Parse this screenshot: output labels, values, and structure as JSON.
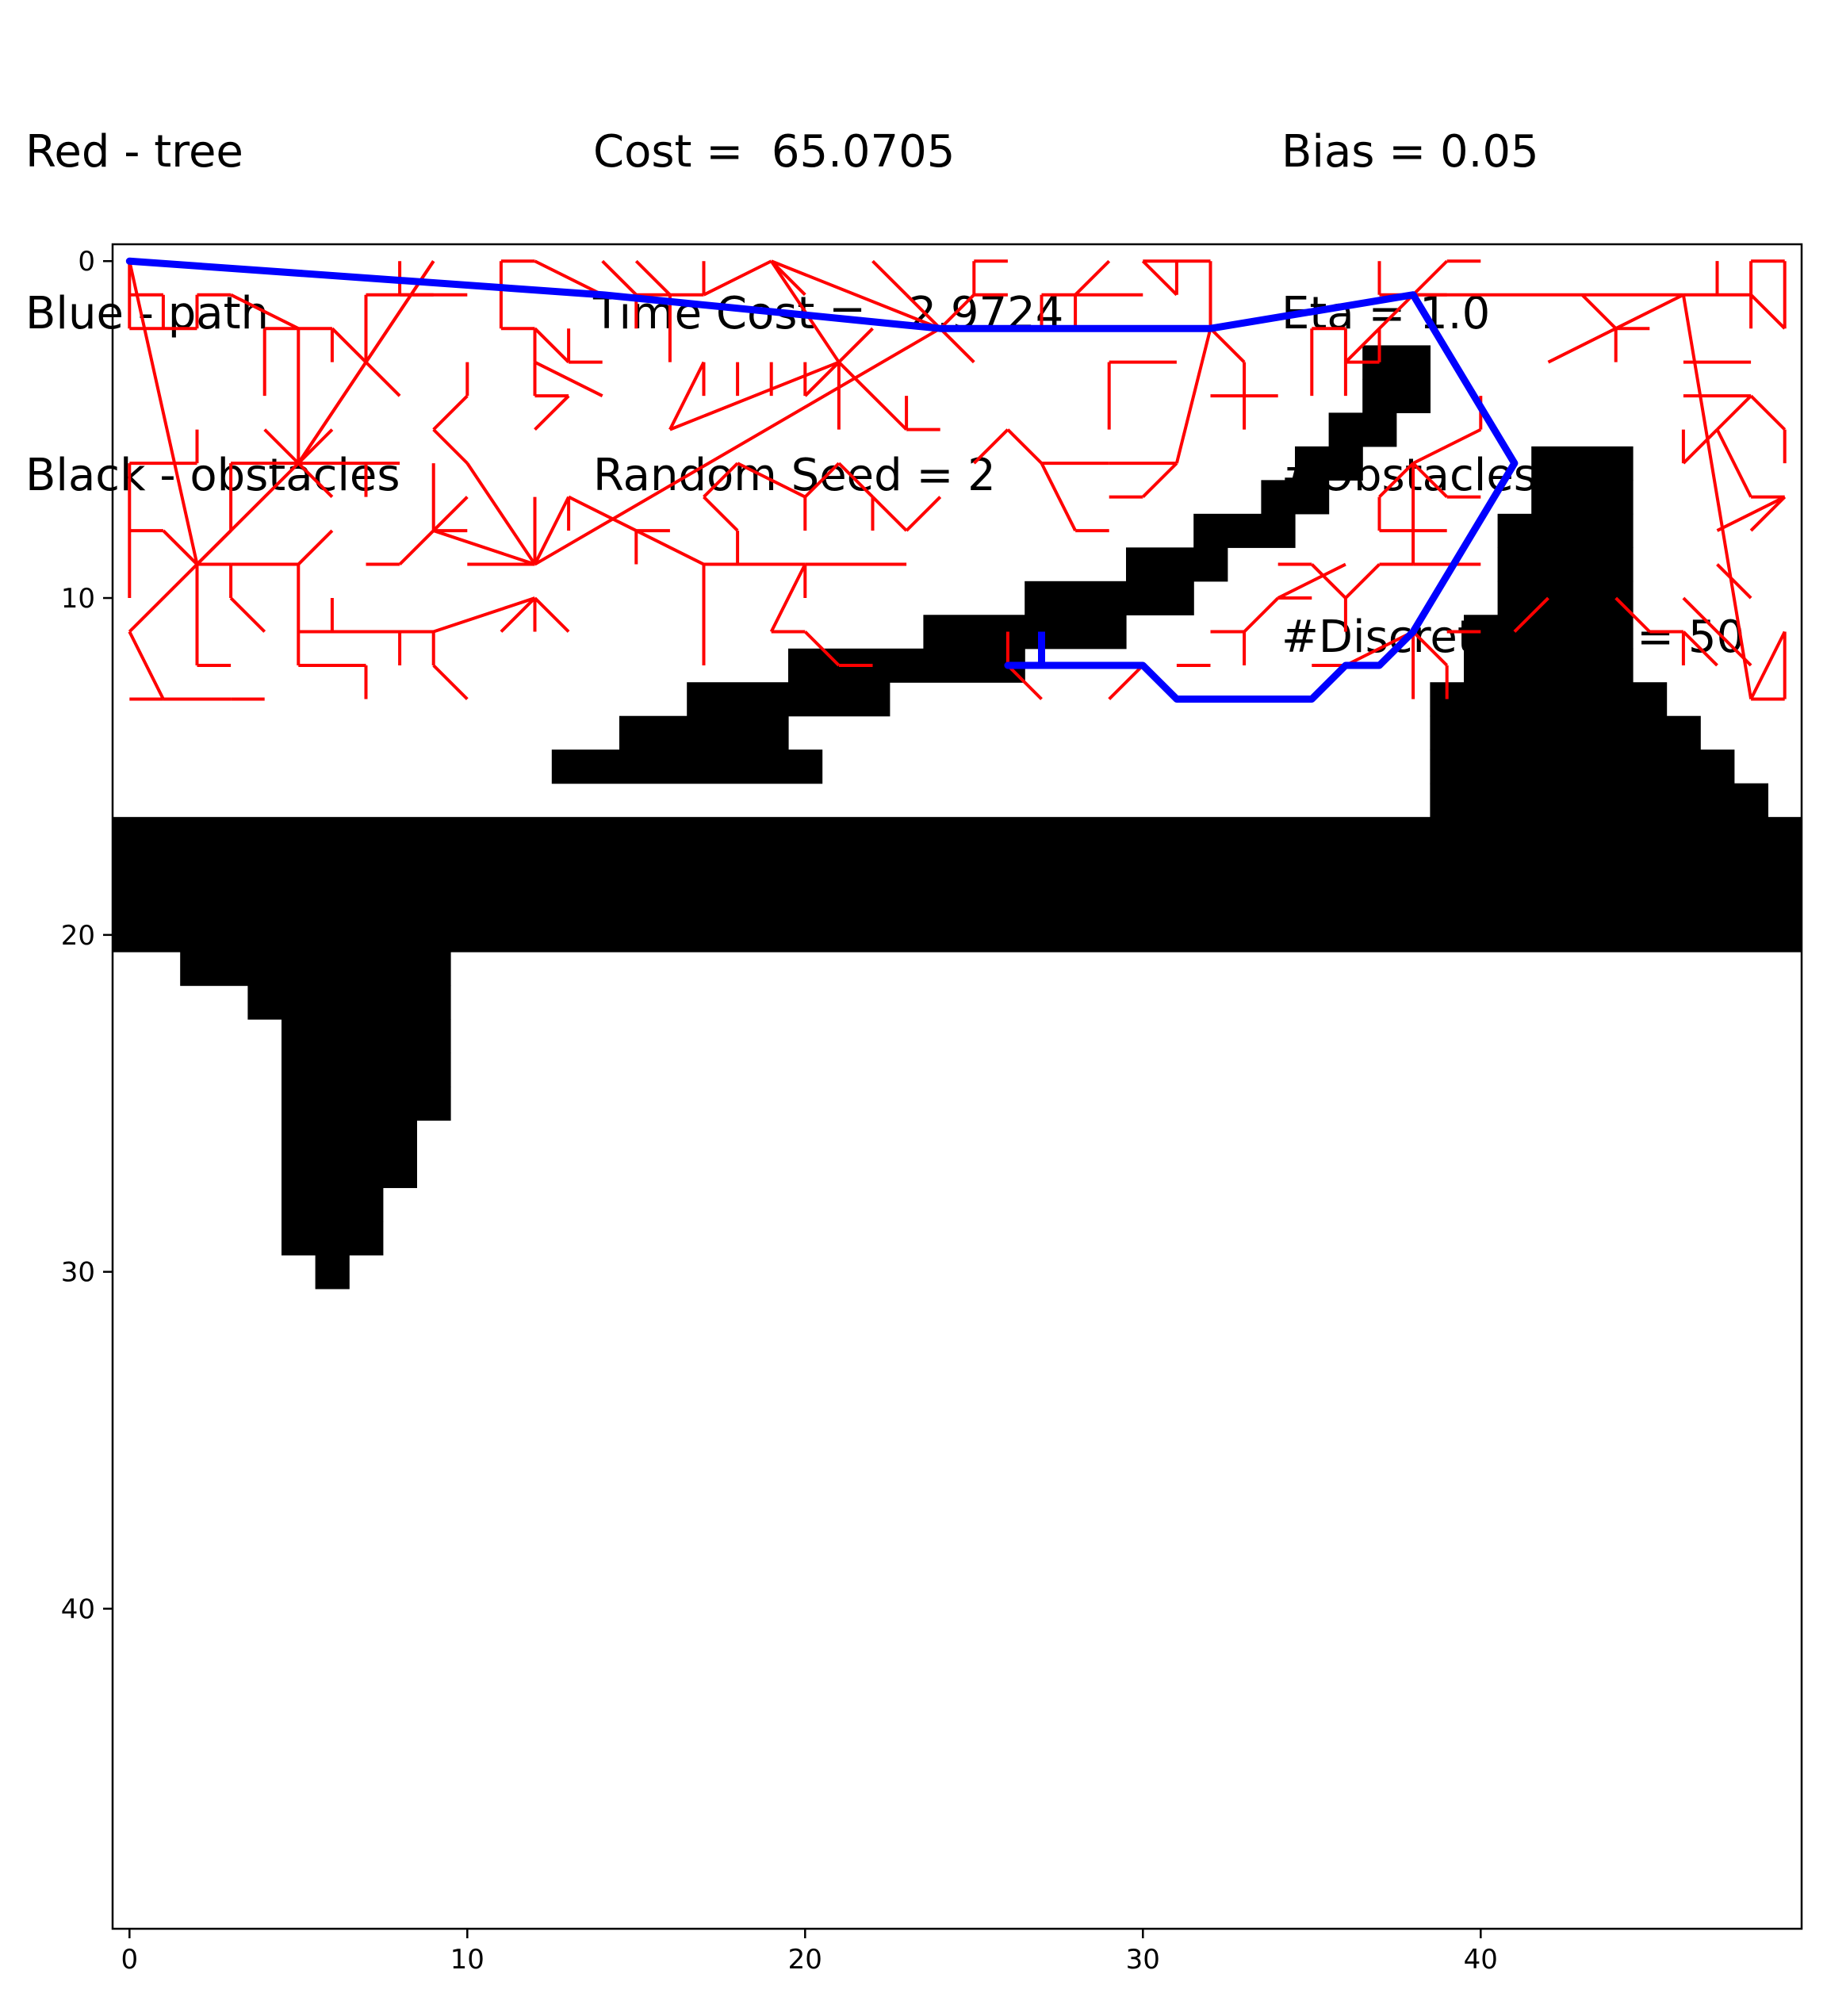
{
  "header": {
    "legend_lines": [
      "Red - tree",
      "Blue - path",
      "Black - obstacles"
    ],
    "stats_lines": [
      "Cost =  65.0705",
      "Time Cost =   2.9724",
      "Random Seed = 2"
    ],
    "params_lines": [
      "Bias = 0.05",
      "Eta = 1.0",
      "#Obstacles = 2",
      "#Discretization = 50"
    ]
  },
  "colors": {
    "tree": "#ff0000",
    "path": "#0000ff",
    "obstacles": "#000000"
  },
  "chart_data": {
    "type": "grid-path-plot",
    "xlim": [
      -0.5,
      49.5
    ],
    "ylim": [
      49.5,
      -0.5
    ],
    "grid_size": 50,
    "xticks": [
      0,
      10,
      20,
      30,
      40
    ],
    "yticks": [
      0,
      10,
      20,
      30,
      40
    ],
    "obstacle_runs": [
      [
        3,
        37,
        38
      ],
      [
        4,
        37,
        38
      ],
      [
        5,
        36,
        37
      ],
      [
        6,
        35,
        36
      ],
      [
        7,
        34,
        35
      ],
      [
        8,
        32,
        34
      ],
      [
        9,
        30,
        32
      ],
      [
        10,
        27,
        31
      ],
      [
        11,
        24,
        29
      ],
      [
        12,
        20,
        26
      ],
      [
        13,
        17,
        22
      ],
      [
        14,
        15,
        19
      ],
      [
        15,
        13,
        20
      ],
      [
        6,
        42,
        44
      ],
      [
        7,
        42,
        44
      ],
      [
        8,
        41,
        44
      ],
      [
        9,
        41,
        44
      ],
      [
        10,
        41,
        44
      ],
      [
        11,
        40,
        44
      ],
      [
        12,
        40,
        44
      ],
      [
        13,
        39,
        45
      ],
      [
        14,
        39,
        46
      ],
      [
        15,
        39,
        47
      ],
      [
        16,
        39,
        48
      ],
      [
        17,
        0,
        49
      ],
      [
        18,
        0,
        49
      ],
      [
        19,
        0,
        49
      ],
      [
        20,
        0,
        49
      ],
      [
        21,
        2,
        9
      ],
      [
        22,
        4,
        9
      ],
      [
        23,
        5,
        9
      ],
      [
        24,
        5,
        9
      ],
      [
        25,
        5,
        9
      ],
      [
        26,
        5,
        8
      ],
      [
        27,
        5,
        8
      ],
      [
        28,
        5,
        7
      ],
      [
        29,
        5,
        7
      ],
      [
        30,
        6,
        6
      ]
    ],
    "tree_edges": [
      [
        0,
        0,
        2,
        9
      ],
      [
        2,
        9,
        5,
        6
      ],
      [
        5,
        6,
        9,
        0
      ],
      [
        2,
        9,
        0,
        11
      ],
      [
        0,
        11,
        1,
        13
      ],
      [
        1,
        13,
        0,
        13
      ],
      [
        1,
        13,
        2,
        13
      ],
      [
        2,
        13,
        3,
        13
      ],
      [
        3,
        13,
        4,
        13
      ],
      [
        2,
        9,
        2,
        12
      ],
      [
        2,
        12,
        3,
        12
      ],
      [
        2,
        9,
        3,
        9
      ],
      [
        3,
        9,
        3,
        10
      ],
      [
        3,
        10,
        4,
        11
      ],
      [
        3,
        9,
        5,
        9
      ],
      [
        5,
        9,
        6,
        8
      ],
      [
        2,
        9,
        1,
        8
      ],
      [
        1,
        8,
        0,
        8
      ],
      [
        2,
        9,
        3,
        8
      ],
      [
        0,
        0,
        0,
        2
      ],
      [
        0,
        1,
        1,
        1
      ],
      [
        1,
        1,
        1,
        2
      ],
      [
        0,
        2,
        2,
        2
      ],
      [
        2,
        2,
        2,
        1
      ],
      [
        2,
        1,
        3,
        1
      ],
      [
        3,
        1,
        5,
        2
      ],
      [
        5,
        2,
        5,
        6
      ],
      [
        4,
        2,
        6,
        2
      ],
      [
        4,
        2,
        4,
        4
      ],
      [
        5,
        6,
        4,
        5
      ],
      [
        5,
        6,
        6,
        7
      ],
      [
        5,
        6,
        3,
        6
      ],
      [
        3,
        6,
        3,
        8
      ],
      [
        5,
        6,
        6,
        5
      ],
      [
        0,
        6,
        2,
        6
      ],
      [
        2,
        6,
        2,
        5
      ],
      [
        0,
        6,
        0,
        10
      ],
      [
        5,
        6,
        7,
        6
      ],
      [
        7,
        6,
        7,
        7
      ],
      [
        7,
        6,
        8,
        6
      ],
      [
        5,
        6,
        7,
        3
      ],
      [
        7,
        3,
        8,
        4
      ],
      [
        7,
        3,
        9,
        0
      ],
      [
        7,
        3,
        6,
        2
      ],
      [
        6,
        2,
        6,
        3
      ],
      [
        7,
        3,
        7,
        1
      ],
      [
        7,
        1,
        8,
        1
      ],
      [
        8,
        1,
        9,
        1
      ],
      [
        8,
        1,
        8,
        0
      ],
      [
        8,
        1,
        10,
        1
      ],
      [
        5,
        9,
        5,
        12
      ],
      [
        5,
        12,
        7,
        12
      ],
      [
        7,
        12,
        7,
        13
      ],
      [
        5,
        11,
        9,
        11
      ],
      [
        6,
        11,
        6,
        10
      ],
      [
        8,
        11,
        8,
        12
      ],
      [
        9,
        11,
        12,
        10
      ],
      [
        12,
        10,
        12,
        11
      ],
      [
        12,
        10,
        13,
        11
      ],
      [
        12,
        10,
        11,
        11
      ],
      [
        9,
        11,
        9,
        12
      ],
      [
        9,
        12,
        10,
        13
      ],
      [
        12,
        9,
        9,
        8
      ],
      [
        9,
        8,
        10,
        8
      ],
      [
        9,
        8,
        8,
        9
      ],
      [
        8,
        9,
        7,
        9
      ],
      [
        9,
        8,
        9,
        6
      ],
      [
        9,
        8,
        10,
        7
      ],
      [
        12,
        9,
        10,
        9
      ],
      [
        12,
        9,
        10,
        6
      ],
      [
        10,
        6,
        9,
        5
      ],
      [
        9,
        5,
        10,
        4
      ],
      [
        10,
        4,
        10,
        3
      ],
      [
        12,
        9,
        13,
        7
      ],
      [
        13,
        7,
        13,
        8
      ],
      [
        13,
        7,
        15,
        8
      ],
      [
        15,
        8,
        16,
        8
      ],
      [
        15,
        8,
        15,
        9
      ],
      [
        15,
        8,
        17,
        9
      ],
      [
        17,
        9,
        17,
        10
      ],
      [
        17,
        10,
        17,
        12
      ],
      [
        17,
        9,
        20,
        9
      ],
      [
        20,
        9,
        20,
        10
      ],
      [
        18,
        9,
        18,
        8
      ],
      [
        20,
        9,
        23,
        9
      ],
      [
        12,
        9,
        12,
        7
      ],
      [
        12,
        9,
        24,
        2
      ],
      [
        24,
        2,
        25,
        1
      ],
      [
        25,
        1,
        26,
        1
      ],
      [
        25,
        1,
        25,
        0
      ],
      [
        25,
        0,
        26,
        0
      ],
      [
        24,
        2,
        23,
        1
      ],
      [
        23,
        1,
        22,
        0
      ],
      [
        24,
        2,
        19,
        0
      ],
      [
        19,
        0,
        17,
        1
      ],
      [
        17,
        1,
        17,
        0
      ],
      [
        19,
        0,
        20,
        1
      ],
      [
        19,
        0,
        21,
        3
      ],
      [
        24,
        2,
        25,
        3
      ],
      [
        24,
        2,
        27,
        2
      ],
      [
        27,
        2,
        27,
        1
      ],
      [
        27,
        1,
        28,
        1
      ],
      [
        28,
        1,
        28,
        2
      ],
      [
        21,
        3,
        21,
        5
      ],
      [
        21,
        3,
        23,
        5
      ],
      [
        23,
        5,
        24,
        5
      ],
      [
        23,
        5,
        23,
        4
      ],
      [
        21,
        3,
        22,
        2
      ],
      [
        21,
        3,
        20,
        4
      ],
      [
        20,
        3,
        20,
        4
      ],
      [
        19,
        3,
        19,
        4
      ],
      [
        18,
        3,
        18,
        4
      ],
      [
        17,
        3,
        17,
        4
      ],
      [
        21,
        3,
        16,
        5
      ],
      [
        16,
        5,
        17,
        3
      ],
      [
        15,
        0,
        16,
        1
      ],
      [
        16,
        1,
        16,
        3
      ],
      [
        15,
        1,
        14,
        0
      ],
      [
        14,
        1,
        12,
        0
      ],
      [
        12,
        0,
        11,
        0
      ],
      [
        11,
        0,
        11,
        2
      ],
      [
        11,
        2,
        12,
        2
      ],
      [
        12,
        2,
        13,
        3
      ],
      [
        13,
        3,
        14,
        3
      ],
      [
        13,
        3,
        13,
        2
      ],
      [
        12,
        2,
        12,
        3
      ],
      [
        12,
        3,
        14,
        4
      ],
      [
        12,
        3,
        12,
        4
      ],
      [
        12,
        4,
        13,
        4
      ],
      [
        13,
        4,
        12,
        5
      ],
      [
        15,
        1,
        15,
        2
      ],
      [
        15,
        1,
        17,
        1
      ],
      [
        18,
        6,
        20,
        7
      ],
      [
        20,
        7,
        20,
        8
      ],
      [
        20,
        7,
        21,
        6
      ],
      [
        18,
        6,
        17,
        7
      ],
      [
        17,
        7,
        18,
        8
      ],
      [
        21,
        6,
        22,
        7
      ],
      [
        22,
        7,
        23,
        8
      ],
      [
        23,
        8,
        24,
        7
      ],
      [
        22,
        7,
        22,
        8
      ],
      [
        20,
        11,
        21,
        12
      ],
      [
        21,
        12,
        22,
        12
      ],
      [
        20,
        11,
        19,
        11
      ],
      [
        19,
        11,
        20,
        9
      ],
      [
        26,
        5,
        25,
        6
      ],
      [
        26,
        5,
        27,
        6
      ],
      [
        27,
        6,
        28,
        8
      ],
      [
        28,
        8,
        29,
        8
      ],
      [
        27,
        6,
        29,
        6
      ],
      [
        29,
        6,
        31,
        6
      ],
      [
        31,
        6,
        32,
        2
      ],
      [
        32,
        2,
        32,
        0
      ],
      [
        32,
        0,
        30,
        0
      ],
      [
        29,
        0,
        28,
        1
      ],
      [
        28,
        1,
        30,
        1
      ],
      [
        30,
        0,
        31,
        1
      ],
      [
        31,
        0,
        31,
        1
      ],
      [
        29,
        3,
        29,
        5
      ],
      [
        29,
        3,
        31,
        3
      ],
      [
        32,
        2,
        33,
        3
      ],
      [
        33,
        3,
        33,
        5
      ],
      [
        32,
        4,
        34,
        4
      ],
      [
        31,
        6,
        30,
        7
      ],
      [
        30,
        7,
        29,
        7
      ],
      [
        38,
        1,
        36,
        3
      ],
      [
        36,
        3,
        37,
        3
      ],
      [
        37,
        3,
        37,
        2
      ],
      [
        38,
        1,
        39,
        1
      ],
      [
        38,
        1,
        37,
        1
      ],
      [
        37,
        1,
        37,
        0
      ],
      [
        38,
        1,
        39,
        0
      ],
      [
        39,
        0,
        40,
        0
      ],
      [
        36,
        2,
        36,
        4
      ],
      [
        35,
        2,
        36,
        2
      ],
      [
        35,
        2,
        35,
        4
      ],
      [
        38,
        1,
        42,
        1
      ],
      [
        42,
        1,
        46,
        1
      ],
      [
        46,
        1,
        47,
        1
      ],
      [
        47,
        1,
        47,
        0
      ],
      [
        47,
        1,
        48,
        1
      ],
      [
        48,
        1,
        48,
        2
      ],
      [
        46,
        1,
        48,
        13
      ],
      [
        48,
        13,
        49,
        13
      ],
      [
        49,
        13,
        49,
        11
      ],
      [
        46,
        1,
        44,
        2
      ],
      [
        44,
        2,
        42,
        3
      ],
      [
        44,
        2,
        44,
        3
      ],
      [
        44,
        2,
        45,
        2
      ],
      [
        43,
        1,
        44,
        2
      ],
      [
        48,
        4,
        49,
        5
      ],
      [
        49,
        5,
        49,
        6
      ],
      [
        48,
        4,
        47,
        5
      ],
      [
        47,
        5,
        46,
        6
      ],
      [
        47,
        5,
        48,
        7
      ],
      [
        48,
        7,
        49,
        7
      ],
      [
        49,
        7,
        47,
        8
      ],
      [
        49,
        7,
        48,
        8
      ],
      [
        48,
        1,
        49,
        2
      ],
      [
        48,
        1,
        48,
        0
      ],
      [
        48,
        0,
        49,
        0
      ],
      [
        49,
        0,
        49,
        2
      ],
      [
        47,
        0,
        47,
        1
      ],
      [
        46,
        3,
        48,
        3
      ],
      [
        46,
        4,
        48,
        4
      ],
      [
        46,
        6,
        46,
        5
      ],
      [
        38,
        6,
        40,
        5
      ],
      [
        40,
        5,
        40,
        4
      ],
      [
        38,
        6,
        37,
        7
      ],
      [
        37,
        7,
        37,
        8
      ],
      [
        38,
        6,
        39,
        7
      ],
      [
        39,
        7,
        40,
        7
      ],
      [
        38,
        6,
        38,
        8
      ],
      [
        38,
        8,
        39,
        8
      ],
      [
        38,
        8,
        37,
        8
      ],
      [
        38,
        8,
        38,
        9
      ],
      [
        38,
        9,
        37,
        9
      ],
      [
        37,
        9,
        36,
        10
      ],
      [
        36,
        10,
        36,
        11
      ],
      [
        36,
        10,
        35,
        9
      ],
      [
        35,
        9,
        34,
        9
      ],
      [
        38,
        9,
        40,
        9
      ],
      [
        38,
        11,
        39,
        12
      ],
      [
        39,
        12,
        39,
        13
      ],
      [
        38,
        11,
        38,
        13
      ],
      [
        38,
        11,
        36,
        12
      ],
      [
        36,
        12,
        35,
        12
      ],
      [
        34,
        10,
        33,
        11
      ],
      [
        33,
        11,
        32,
        11
      ],
      [
        33,
        11,
        33,
        12
      ],
      [
        34,
        10,
        36,
        9
      ],
      [
        34,
        10,
        35,
        10
      ],
      [
        44,
        10,
        45,
        11
      ],
      [
        45,
        11,
        46,
        11
      ],
      [
        46,
        11,
        47,
        12
      ],
      [
        46,
        11,
        46,
        12
      ],
      [
        49,
        11,
        48,
        13
      ],
      [
        26,
        12,
        27,
        13
      ],
      [
        26,
        12,
        26,
        11
      ],
      [
        26,
        12,
        28,
        12
      ],
      [
        30,
        12,
        29,
        13
      ],
      [
        31,
        12,
        32,
        12
      ],
      [
        46,
        10,
        48,
        12
      ],
      [
        47,
        9,
        48,
        10
      ],
      [
        36,
        12,
        35,
        13
      ],
      [
        39,
        11,
        40,
        11
      ],
      [
        41,
        11,
        42,
        10
      ]
    ],
    "path": [
      [
        0,
        0
      ],
      [
        14,
        1
      ],
      [
        24,
        2
      ],
      [
        32,
        2
      ],
      [
        38,
        1
      ],
      [
        41,
        6
      ],
      [
        38,
        11
      ],
      [
        37,
        12
      ],
      [
        36,
        12
      ],
      [
        35,
        13
      ],
      [
        31,
        13
      ],
      [
        30,
        12
      ],
      [
        27,
        12
      ],
      [
        26,
        12
      ]
    ],
    "path_spur": [
      [
        27,
        12
      ],
      [
        27,
        11
      ]
    ]
  }
}
